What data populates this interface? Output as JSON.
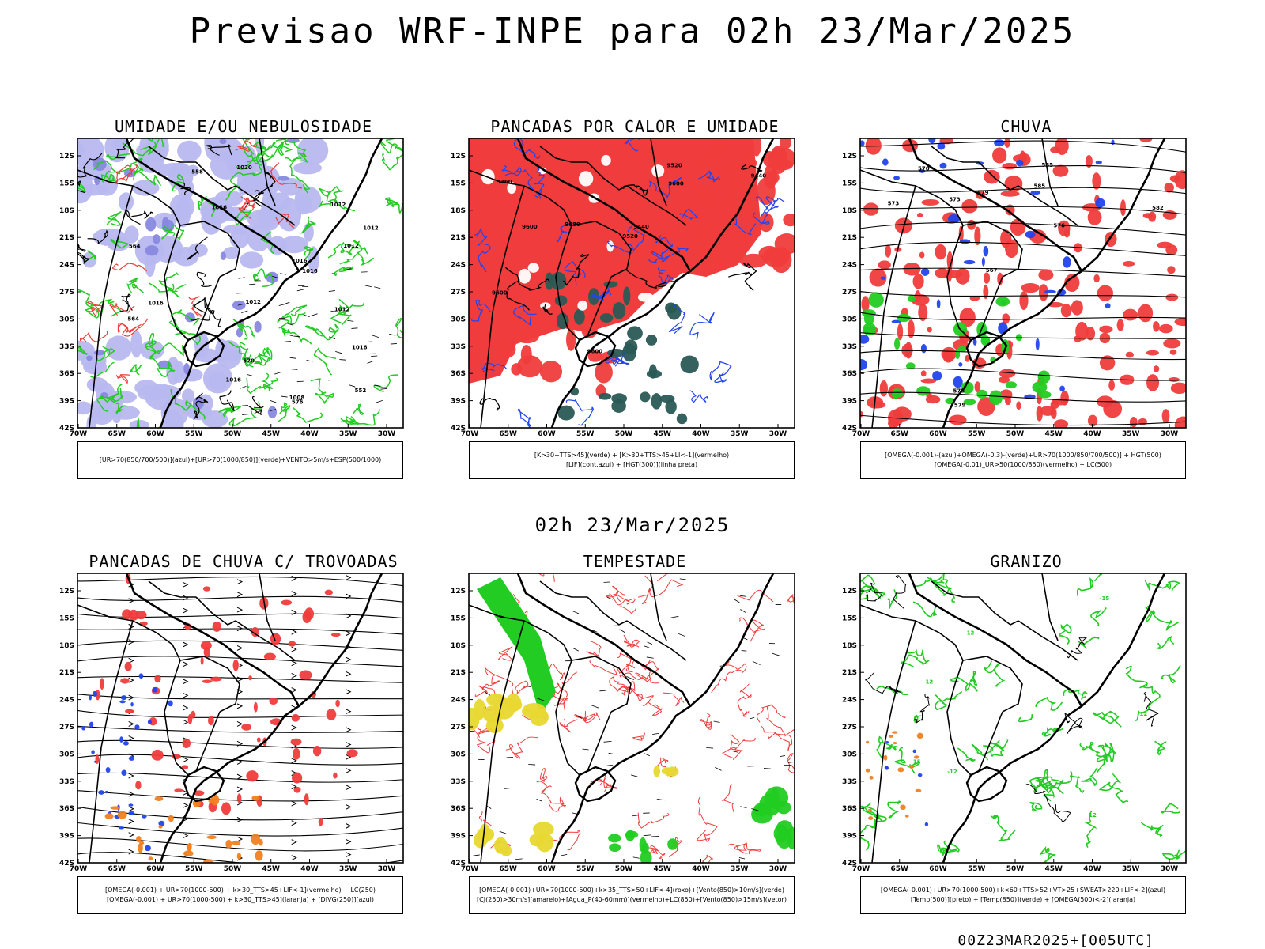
{
  "header": {
    "title": "Previsao WRF-INPE  para 02h 23/Mar/2025",
    "subtitle": "02h 23/Mar/2025",
    "run_label": "00Z23MAR2025+[005UTC]"
  },
  "axes": {
    "lat_labels": [
      "12S",
      "15S",
      "18S",
      "21S",
      "24S",
      "27S",
      "30S",
      "33S",
      "36S",
      "39S",
      "42S"
    ],
    "lon_labels": [
      "70W",
      "65W",
      "60W",
      "55W",
      "50W",
      "45W",
      "40W",
      "35W",
      "30W"
    ]
  },
  "panels": [
    {
      "id": "umidade",
      "title": "UMIDADE E/OU NEBULOSIDADE",
      "legend": [
        "[UR>70(850/700/500)](azul)+[UR>70(1000/850)](verde)+VENTO>5m/s+ESP(500/1000)"
      ],
      "contour_labels": [
        "1016",
        "1012",
        "1012",
        "1012",
        "1016",
        "1008",
        "1012",
        "1016",
        "1012",
        "1016",
        "1020",
        "1016",
        "1016",
        "576",
        "570",
        "564",
        "564",
        "558",
        "552"
      ]
    },
    {
      "id": "pancadas-calor",
      "title": "PANCADAS POR CALOR E UMIDADE",
      "legend": [
        "[K>30+TTS>45](verde) + [K>30+TTS>45+LI<-1](vermelho)",
        "[LIF](cont.azul) + [HGT(300)](linha preta)"
      ],
      "contour_labels": [
        "9680",
        "9600",
        "9600",
        "9600",
        "9520",
        "9440",
        "9600",
        "9520",
        "9440",
        "9360"
      ]
    },
    {
      "id": "chuva",
      "title": "CHUVA",
      "legend": [
        "[OMEGA(-0.001)-(azul)+OMEGA(-0.3)-(verde)+UR>70(1000/850/700/500)] + HGT(500)",
        "[OMEGA(-0.01)_UR>50(1000/850)(vermelho) + LC(500)"
      ],
      "contour_labels": [
        "585",
        "585",
        "582",
        "579",
        "576",
        "573",
        "570",
        "567",
        "576",
        "573",
        "579"
      ]
    },
    {
      "id": "trovoadas",
      "title": "PANCADAS DE CHUVA C/ TROVOADAS",
      "legend": [
        "[OMEGA(-0.001) + UR>70(1000-500) + k>30_TTS>45+LIF<-1](vermelho) + LC(250)",
        "[OMEGA(-0.001) + UR>70(1000-500) + k>30_TTS>45](laranja) + [DIVG(250)](azul)"
      ],
      "contour_labels": []
    },
    {
      "id": "tempestade",
      "title": "TEMPESTADE",
      "legend": [
        "[OMEGA(-0.001)+UR>70(1000-500)+k>35_TTS>50+LIF<-4](roxo)+[Vento(850)>10m/s](verde)",
        "[CJ(250)>30m/s](amarelo)+[Agua_P(40-60mm)](vermelho)+LC(850)+[Vento(850)>15m/s](vetor)"
      ],
      "contour_labels": []
    },
    {
      "id": "granizo",
      "title": "GRANIZO",
      "legend": [
        "[OMEGA(-0.001)+UR>70(1000-500)+k<60+TTS>52+VT>25+SWEAT>220+LIF<-2](azul)",
        "[Temp(500)](preto) + [Temp(850)](verde) + [OMEGA(500)<-2](laranja)"
      ],
      "contour_labels": [
        "-15",
        "-12",
        "12",
        "12",
        "12",
        "15",
        "-12"
      ]
    }
  ],
  "colors": {
    "green": "#22cc22",
    "blue": "#2244ee",
    "red": "#f03c3c",
    "lavender": "#b8b8f0",
    "darkteal": "#2a5a55",
    "yellow": "#e8d830",
    "orange": "#f08020"
  }
}
